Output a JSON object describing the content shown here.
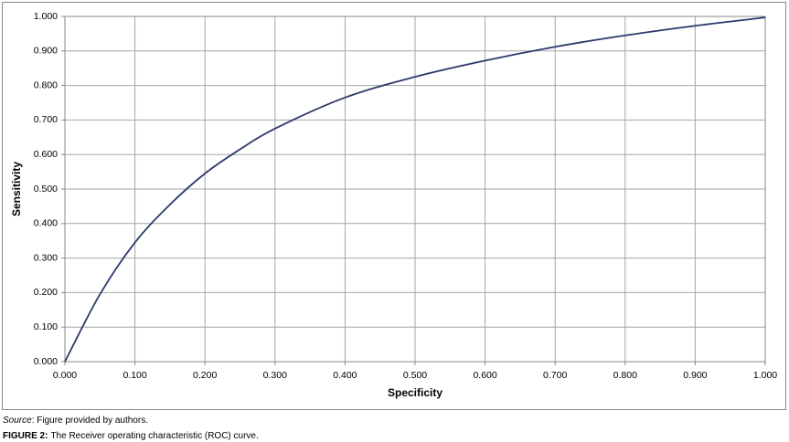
{
  "chart_data": {
    "type": "line",
    "x_label": "Specificity",
    "y_label": "Sensitivity",
    "x": [
      0,
      0.05,
      0.1,
      0.15,
      0.2,
      0.25,
      0.3,
      0.4,
      0.5,
      0.6,
      0.7,
      0.8,
      0.9,
      1.0
    ],
    "series": [
      {
        "color": "#2b3a6b",
        "values": [
          0,
          0.195,
          0.345,
          0.455,
          0.545,
          0.615,
          0.675,
          0.765,
          0.825,
          0.872,
          0.912,
          0.945,
          0.973,
          0.997
        ]
      }
    ],
    "xlim": [
      0,
      1
    ],
    "ylim": [
      0,
      1
    ],
    "xticks": [
      {
        "value": 0,
        "label": "0.000"
      },
      {
        "value": 0.1,
        "label": "0.100"
      },
      {
        "value": 0.2,
        "label": "0.200"
      },
      {
        "value": 0.3,
        "label": "0.300"
      },
      {
        "value": 0.4,
        "label": "0.400"
      },
      {
        "value": 0.5,
        "label": "0.500"
      },
      {
        "value": 0.6,
        "label": "0.600"
      },
      {
        "value": 0.7,
        "label": "0.700"
      },
      {
        "value": 0.8,
        "label": "0.800"
      },
      {
        "value": 0.9,
        "label": "0.900"
      },
      {
        "value": 1.0,
        "label": "1.000"
      }
    ],
    "yticks": [
      {
        "value": 0,
        "label": "0.000"
      },
      {
        "value": 0.1,
        "label": "0.100"
      },
      {
        "value": 0.2,
        "label": "0.200"
      },
      {
        "value": 0.3,
        "label": "0.300"
      },
      {
        "value": 0.4,
        "label": "0.400"
      },
      {
        "value": 0.5,
        "label": "0.500"
      },
      {
        "value": 0.6,
        "label": "0.600"
      },
      {
        "value": 0.7,
        "label": "0.700"
      },
      {
        "value": 0.8,
        "label": "0.800"
      },
      {
        "value": 0.9,
        "label": "0.900"
      },
      {
        "value": 1.0,
        "label": "1.000"
      }
    ],
    "grid": true
  },
  "caption": {
    "source_label": "Source",
    "source_text": ": Figure provided by authors.",
    "figure_label": "FIGURE 2:",
    "figure_text": "The Receiver operating characteristic (ROC) curve."
  }
}
